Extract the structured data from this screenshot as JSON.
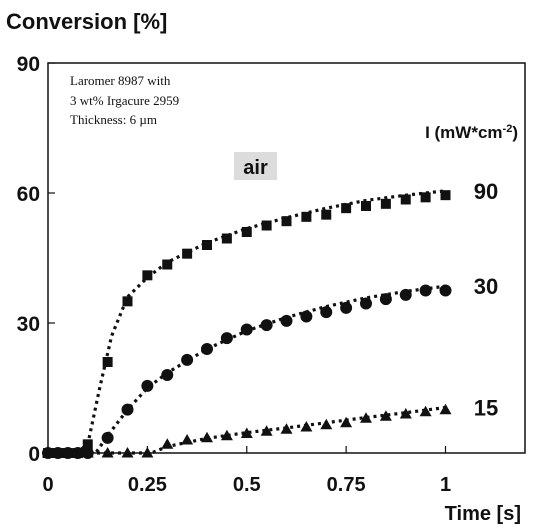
{
  "chart_data": {
    "type": "scatter",
    "ylabel": "Conversion [%]",
    "xlabel": "Time [s]",
    "xlim": [
      0,
      1.2
    ],
    "ylim": [
      0,
      90
    ],
    "x_ticks": [
      {
        "value": 0,
        "label": "0"
      },
      {
        "value": 0.25,
        "label": "0.25"
      },
      {
        "value": 0.5,
        "label": "0.5"
      },
      {
        "value": 0.75,
        "label": "0.75"
      },
      {
        "value": 1,
        "label": "1"
      }
    ],
    "y_ticks": [
      {
        "value": 0,
        "label": "0"
      },
      {
        "value": 30,
        "label": "30"
      },
      {
        "value": 60,
        "label": "60"
      },
      {
        "value": 90,
        "label": "90"
      }
    ],
    "annotation_lines": [
      "Laromer 8987 with",
      "3 wt% Irgacure 2959"
    ],
    "thickness_label": "Thickness: 6 ",
    "thickness_unit": "µm",
    "atmosphere_label": "air",
    "intensity_header": {
      "prefix": "I (mW*cm",
      "exponent": "-2",
      "suffix": ")"
    },
    "grid": false,
    "series": [
      {
        "name": "90",
        "marker": "square",
        "x": [
          0.0,
          0.025,
          0.05,
          0.075,
          0.1,
          0.15,
          0.2,
          0.25,
          0.3,
          0.35,
          0.4,
          0.45,
          0.5,
          0.55,
          0.6,
          0.65,
          0.7,
          0.75,
          0.8,
          0.85,
          0.9,
          0.95,
          1.0
        ],
        "y": [
          0.0,
          0.0,
          0.0,
          0.0,
          2.0,
          21.0,
          35.0,
          41.0,
          43.5,
          46.0,
          48.0,
          49.5,
          51.0,
          52.5,
          53.5,
          54.5,
          55.0,
          56.5,
          57.0,
          57.5,
          58.5,
          59.0,
          59.5
        ],
        "fit_x": [
          0.0,
          0.07,
          0.1,
          0.13,
          0.16,
          0.2,
          0.25,
          0.3,
          0.4,
          0.5,
          0.6,
          0.7,
          0.8,
          0.9,
          1.0
        ],
        "fit_y": [
          0.0,
          0.0,
          2.0,
          15.0,
          27.0,
          36.0,
          40.5,
          44.0,
          48.5,
          51.8,
          54.3,
          56.5,
          58.3,
          59.5,
          60.5
        ]
      },
      {
        "name": "30",
        "marker": "circle",
        "x": [
          0.0,
          0.025,
          0.05,
          0.075,
          0.1,
          0.15,
          0.2,
          0.25,
          0.3,
          0.35,
          0.4,
          0.45,
          0.5,
          0.55,
          0.6,
          0.65,
          0.7,
          0.75,
          0.8,
          0.85,
          0.9,
          0.95,
          1.0
        ],
        "y": [
          0.0,
          0.0,
          0.0,
          0.0,
          0.0,
          3.5,
          10.0,
          15.5,
          18.0,
          21.5,
          24.0,
          26.5,
          28.5,
          29.5,
          30.5,
          31.5,
          32.5,
          33.5,
          34.5,
          35.5,
          36.5,
          37.5,
          37.5
        ],
        "fit_x": [
          0.0,
          0.12,
          0.15,
          0.2,
          0.25,
          0.3,
          0.4,
          0.5,
          0.6,
          0.7,
          0.8,
          0.9,
          1.0
        ],
        "fit_y": [
          0.0,
          0.0,
          4.0,
          10.0,
          15.0,
          18.5,
          24.0,
          28.2,
          31.3,
          33.8,
          35.8,
          37.3,
          38.5
        ]
      },
      {
        "name": "15",
        "marker": "triangle",
        "x": [
          0.0,
          0.025,
          0.05,
          0.075,
          0.1,
          0.15,
          0.2,
          0.25,
          0.3,
          0.35,
          0.4,
          0.45,
          0.5,
          0.55,
          0.6,
          0.65,
          0.7,
          0.75,
          0.8,
          0.85,
          0.9,
          0.95,
          1.0
        ],
        "y": [
          0.0,
          0.0,
          0.0,
          0.0,
          0.0,
          0.0,
          0.0,
          0.0,
          2.0,
          3.0,
          3.5,
          4.0,
          4.5,
          5.0,
          5.5,
          6.0,
          6.5,
          7.0,
          8.0,
          8.5,
          9.0,
          9.5,
          10.0
        ],
        "fit_x": [
          0.0,
          0.26,
          0.3,
          0.4,
          0.5,
          0.6,
          0.7,
          0.8,
          0.9,
          1.0
        ],
        "fit_y": [
          0.0,
          0.0,
          1.5,
          3.4,
          4.7,
          5.8,
          7.0,
          8.2,
          9.3,
          10.5
        ]
      }
    ]
  }
}
